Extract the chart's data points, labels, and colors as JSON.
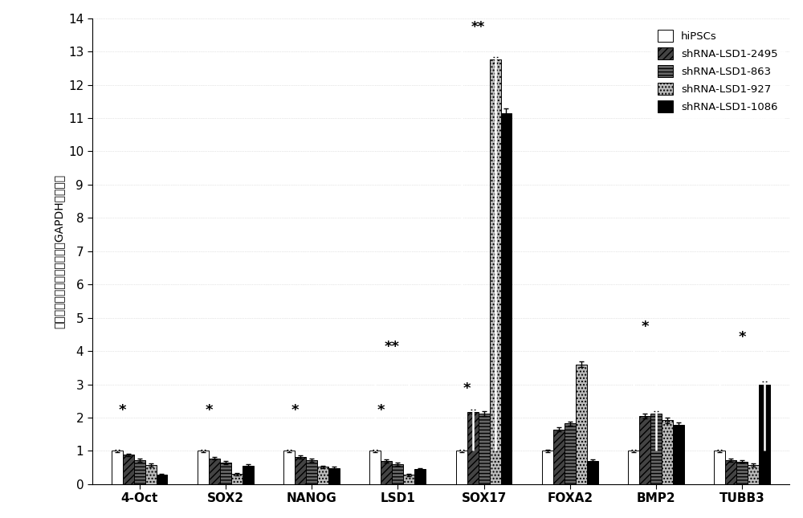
{
  "categories": [
    "4-Oct",
    "SOX2",
    "NANOG",
    "LSD1",
    "SOX17",
    "FOXA2",
    "BMP2",
    "TUBB3"
  ],
  "series": {
    "hiPSCs": [
      1.0,
      1.0,
      1.0,
      1.0,
      1.0,
      1.0,
      1.0,
      1.0
    ],
    "shRNA-LSD1-2495": [
      0.88,
      0.78,
      0.82,
      0.7,
      2.18,
      1.65,
      2.05,
      0.72
    ],
    "shRNA-LSD1-863": [
      0.72,
      0.65,
      0.72,
      0.6,
      2.12,
      1.82,
      2.12,
      0.68
    ],
    "shRNA-LSD1-927": [
      0.58,
      0.3,
      0.52,
      0.28,
      12.75,
      3.6,
      1.92,
      0.58
    ],
    "shRNA-LSD1-1086": [
      0.28,
      0.55,
      0.48,
      0.45,
      11.15,
      0.7,
      1.78,
      3.0
    ]
  },
  "errors": {
    "hiPSCs": [
      0.04,
      0.04,
      0.04,
      0.04,
      0.04,
      0.04,
      0.04,
      0.04
    ],
    "shRNA-LSD1-2495": [
      0.04,
      0.04,
      0.04,
      0.04,
      0.07,
      0.07,
      0.07,
      0.04
    ],
    "shRNA-LSD1-863": [
      0.04,
      0.04,
      0.04,
      0.04,
      0.07,
      0.07,
      0.07,
      0.04
    ],
    "shRNA-LSD1-927": [
      0.04,
      0.04,
      0.04,
      0.04,
      0.09,
      0.09,
      0.09,
      0.04
    ],
    "shRNA-LSD1-1086": [
      0.04,
      0.04,
      0.04,
      0.04,
      0.13,
      0.04,
      0.07,
      0.09
    ]
  },
  "colors": {
    "hiPSCs": "#ffffff",
    "shRNA-LSD1-2495": "#444444",
    "shRNA-LSD1-863": "#666666",
    "shRNA-LSD1-927": "#bbbbbb",
    "shRNA-LSD1-1086": "#000000"
  },
  "hatches": {
    "hiPSCs": "",
    "shRNA-LSD1-2495": "////",
    "shRNA-LSD1-863": "----",
    "shRNA-LSD1-927": "....",
    "shRNA-LSD1-1086": ""
  },
  "ylim": [
    0,
    14
  ],
  "yticks": [
    0,
    1,
    2,
    3,
    4,
    5,
    6,
    7,
    8,
    9,
    10,
    11,
    12,
    13,
    14
  ],
  "ylabel": "各基因的相对表达量（与内参GAPDH相比较）",
  "background_color": "#ffffff"
}
